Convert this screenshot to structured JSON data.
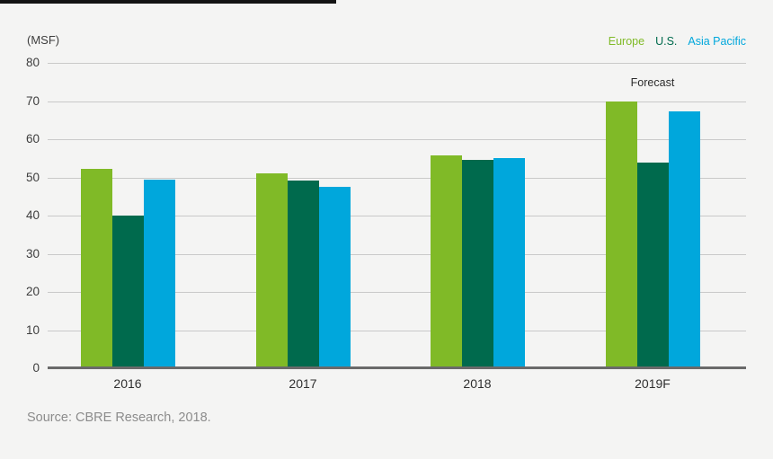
{
  "header": {
    "unit_label": "(MSF)"
  },
  "legend": {
    "items": [
      {
        "label": "Europe",
        "color": "#80BA27"
      },
      {
        "label": "U.S.",
        "color": "#006A4D"
      },
      {
        "label": "Asia Pacific",
        "color": "#00A7DC"
      }
    ]
  },
  "annotations": {
    "forecast_label": "Forecast"
  },
  "footer": {
    "source": "Source: CBRE Research, 2018."
  },
  "colors": {
    "background": "#f4f4f3",
    "gridline": "#c9c9c9",
    "baseline": "#6a6a6a",
    "europe": "#80BA27",
    "us": "#006A4D",
    "asia_pacific": "#00A7DC"
  },
  "chart_data": {
    "type": "bar",
    "title": "",
    "ylabel": "(MSF)",
    "xlabel": "",
    "unit": "MSF",
    "categories": [
      "2016",
      "2017",
      "2018",
      "2019F"
    ],
    "series": [
      {
        "name": "Europe",
        "color": "#80BA27",
        "values": [
          52.2,
          51.0,
          55.7,
          70.0
        ]
      },
      {
        "name": "U.S.",
        "color": "#006A4D",
        "values": [
          40.0,
          49.2,
          54.5,
          54.0
        ]
      },
      {
        "name": "Asia Pacific",
        "color": "#00A7DC",
        "values": [
          49.5,
          47.6,
          55.0,
          67.2
        ]
      }
    ],
    "ylim": [
      0,
      80
    ],
    "ytick_step": 10,
    "grid": "horizontal",
    "legend_position": "top-right",
    "annotation": "Forecast above 2019F group"
  }
}
